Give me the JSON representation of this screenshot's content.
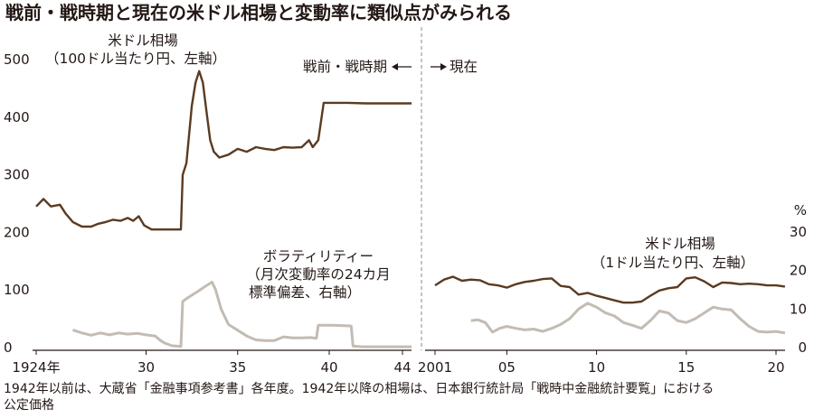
{
  "chart_data": {
    "type": "line",
    "title": "戦前・戦時期と現在の米ドル相場と変動率に類似点がみられる",
    "colors": {
      "rate": "#5a3b22",
      "volatility": "#c3bcb3",
      "axis": "#231815",
      "divider": "#888888"
    },
    "left_axis": {
      "ticks": [
        "500",
        "400",
        "300",
        "200",
        "100",
        "0"
      ],
      "ylim": [
        0,
        500
      ]
    },
    "right_axis": {
      "unit": "%",
      "ticks": [
        "30",
        "20",
        "10",
        "0"
      ],
      "ylim": [
        0,
        30
      ]
    },
    "x_ticks_prewar": [
      "1924年",
      "30",
      "35",
      "40",
      "44"
    ],
    "x_ticks_current": [
      "2001",
      "05",
      "10",
      "15",
      "20"
    ],
    "divider_labels": {
      "left": "戦前・戦時期",
      "right": "現在"
    },
    "annotations": {
      "rate_prewar": [
        "米ドル相場",
        "（100ドル当たり円、左軸）"
      ],
      "volatility": [
        "ボラティリティー",
        "（月次変動率の24カ月",
        "標準偏差、右軸）"
      ],
      "rate_current": [
        "米ドル相場",
        "（1ドル当たり円、左軸）"
      ]
    },
    "series": [
      {
        "name": "米ドル相場",
        "period": "prewar",
        "axis": "left",
        "unit": "100ドル当たり円",
        "points": [
          [
            1924.0,
            245
          ],
          [
            1924.4,
            258
          ],
          [
            1924.8,
            245
          ],
          [
            1925.3,
            248
          ],
          [
            1925.6,
            233
          ],
          [
            1926.0,
            218
          ],
          [
            1926.5,
            210
          ],
          [
            1927.0,
            210
          ],
          [
            1927.4,
            215
          ],
          [
            1927.8,
            218
          ],
          [
            1928.2,
            222
          ],
          [
            1928.6,
            220
          ],
          [
            1929.0,
            225
          ],
          [
            1929.3,
            220
          ],
          [
            1929.6,
            228
          ],
          [
            1929.9,
            212
          ],
          [
            1930.3,
            205
          ],
          [
            1930.7,
            205
          ],
          [
            1931.0,
            205
          ],
          [
            1931.5,
            205
          ],
          [
            1931.9,
            205
          ],
          [
            1932.0,
            300
          ],
          [
            1932.2,
            320
          ],
          [
            1932.5,
            420
          ],
          [
            1932.7,
            460
          ],
          [
            1932.9,
            480
          ],
          [
            1933.1,
            460
          ],
          [
            1933.3,
            410
          ],
          [
            1933.5,
            360
          ],
          [
            1933.7,
            340
          ],
          [
            1934.0,
            330
          ],
          [
            1934.5,
            335
          ],
          [
            1935.0,
            345
          ],
          [
            1935.5,
            340
          ],
          [
            1936.0,
            348
          ],
          [
            1936.5,
            345
          ],
          [
            1937.0,
            343
          ],
          [
            1937.5,
            348
          ],
          [
            1938.0,
            347
          ],
          [
            1938.5,
            348
          ],
          [
            1938.9,
            360
          ],
          [
            1939.1,
            348
          ],
          [
            1939.4,
            360
          ],
          [
            1939.7,
            425
          ],
          [
            1940.2,
            425
          ],
          [
            1941.0,
            425
          ],
          [
            1942.0,
            424
          ],
          [
            1943.0,
            424
          ],
          [
            1944.0,
            424
          ],
          [
            1944.5,
            424
          ]
        ]
      },
      {
        "name": "ボラティリティー",
        "period": "prewar",
        "axis": "right",
        "unit": "%",
        "points": [
          [
            1926.0,
            4.6
          ],
          [
            1926.5,
            3.8
          ],
          [
            1927.0,
            3.2
          ],
          [
            1927.5,
            3.8
          ],
          [
            1928.0,
            3.3
          ],
          [
            1928.5,
            3.8
          ],
          [
            1929.0,
            3.5
          ],
          [
            1929.5,
            3.7
          ],
          [
            1930.0,
            3.3
          ],
          [
            1930.5,
            3.0
          ],
          [
            1930.8,
            1.8
          ],
          [
            1931.0,
            1.2
          ],
          [
            1931.4,
            0.5
          ],
          [
            1931.9,
            0.3
          ],
          [
            1932.0,
            12.0
          ],
          [
            1932.3,
            13.0
          ],
          [
            1932.8,
            14.5
          ],
          [
            1933.2,
            15.8
          ],
          [
            1933.6,
            17.0
          ],
          [
            1933.8,
            15.0
          ],
          [
            1934.1,
            10.0
          ],
          [
            1934.5,
            6.0
          ],
          [
            1935.0,
            4.5
          ],
          [
            1935.5,
            3.0
          ],
          [
            1936.0,
            2.0
          ],
          [
            1936.5,
            1.8
          ],
          [
            1937.0,
            1.8
          ],
          [
            1937.5,
            2.8
          ],
          [
            1938.0,
            2.5
          ],
          [
            1938.5,
            2.5
          ],
          [
            1939.0,
            2.6
          ],
          [
            1939.3,
            2.4
          ],
          [
            1939.4,
            5.8
          ],
          [
            1939.8,
            5.8
          ],
          [
            1940.2,
            5.8
          ],
          [
            1940.8,
            5.7
          ],
          [
            1941.2,
            5.6
          ],
          [
            1941.3,
            0.4
          ],
          [
            1941.8,
            0.2
          ],
          [
            1942.5,
            0.2
          ],
          [
            1943.5,
            0.2
          ],
          [
            1944.5,
            0.2
          ]
        ]
      },
      {
        "name": "米ドル相場",
        "period": "current",
        "axis": "left",
        "unit": "1ドル当たり円",
        "points": [
          [
            2001.0,
            108
          ],
          [
            2001.5,
            118
          ],
          [
            2002.0,
            123
          ],
          [
            2002.5,
            116
          ],
          [
            2003.0,
            118
          ],
          [
            2003.5,
            117
          ],
          [
            2004.0,
            110
          ],
          [
            2004.5,
            108
          ],
          [
            2005.0,
            104
          ],
          [
            2005.5,
            110
          ],
          [
            2006.0,
            114
          ],
          [
            2006.5,
            116
          ],
          [
            2007.0,
            119
          ],
          [
            2007.5,
            120
          ],
          [
            2008.0,
            107
          ],
          [
            2008.5,
            105
          ],
          [
            2009.0,
            92
          ],
          [
            2009.5,
            95
          ],
          [
            2010.0,
            90
          ],
          [
            2010.5,
            86
          ],
          [
            2011.0,
            82
          ],
          [
            2011.5,
            78
          ],
          [
            2012.0,
            78
          ],
          [
            2012.5,
            80
          ],
          [
            2013.0,
            90
          ],
          [
            2013.5,
            99
          ],
          [
            2014.0,
            103
          ],
          [
            2014.5,
            105
          ],
          [
            2015.0,
            120
          ],
          [
            2015.5,
            122
          ],
          [
            2016.0,
            115
          ],
          [
            2016.5,
            105
          ],
          [
            2017.0,
            113
          ],
          [
            2017.5,
            112
          ],
          [
            2018.0,
            110
          ],
          [
            2018.5,
            111
          ],
          [
            2019.0,
            110
          ],
          [
            2019.5,
            108
          ],
          [
            2020.0,
            108
          ],
          [
            2020.5,
            106
          ]
        ]
      },
      {
        "name": "ボラティリティー",
        "period": "current",
        "axis": "right",
        "unit": "%",
        "points": [
          [
            2003.0,
            7.0
          ],
          [
            2003.4,
            7.2
          ],
          [
            2003.8,
            6.5
          ],
          [
            2004.2,
            4.0
          ],
          [
            2004.6,
            5.0
          ],
          [
            2005.0,
            5.5
          ],
          [
            2005.5,
            5.0
          ],
          [
            2006.0,
            4.6
          ],
          [
            2006.5,
            4.8
          ],
          [
            2007.0,
            4.2
          ],
          [
            2007.5,
            5.0
          ],
          [
            2008.0,
            6.0
          ],
          [
            2008.5,
            7.5
          ],
          [
            2009.0,
            10.0
          ],
          [
            2009.5,
            11.5
          ],
          [
            2010.0,
            10.5
          ],
          [
            2010.5,
            9.0
          ],
          [
            2011.0,
            8.2
          ],
          [
            2011.5,
            6.5
          ],
          [
            2012.0,
            5.8
          ],
          [
            2012.5,
            5.0
          ],
          [
            2013.0,
            7.0
          ],
          [
            2013.5,
            9.5
          ],
          [
            2014.0,
            9.0
          ],
          [
            2014.5,
            7.0
          ],
          [
            2015.0,
            6.5
          ],
          [
            2015.5,
            7.5
          ],
          [
            2016.0,
            9.0
          ],
          [
            2016.5,
            10.5
          ],
          [
            2017.0,
            10.0
          ],
          [
            2017.5,
            9.8
          ],
          [
            2018.0,
            7.5
          ],
          [
            2018.5,
            5.5
          ],
          [
            2019.0,
            4.2
          ],
          [
            2019.5,
            4.0
          ],
          [
            2020.0,
            4.2
          ],
          [
            2020.5,
            3.8
          ]
        ]
      }
    ],
    "source_note": [
      "1942年以前は、大蔵省「金融事項参考書」各年度。1942年以降の相場は、日本銀行統計局「戦時中金融統計要覧」における",
      "公定価格"
    ]
  }
}
